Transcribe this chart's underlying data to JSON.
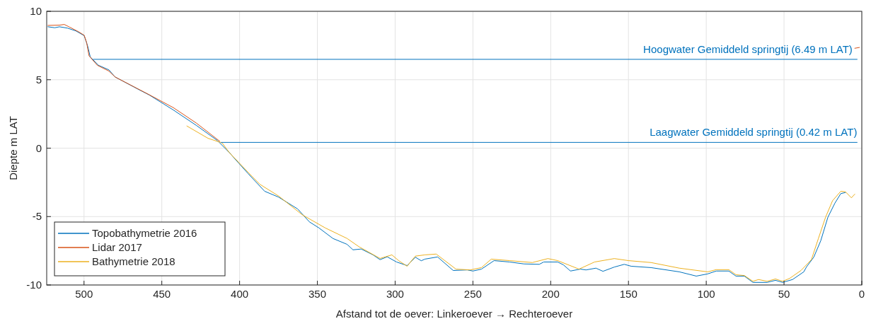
{
  "chart_data": {
    "type": "line",
    "xlabel": "Afstand tot de oever: Linkeroever → Rechteroever",
    "ylabel": "Diepte m LAT",
    "xlim": [
      524,
      0
    ],
    "xticks": [
      0,
      50,
      100,
      150,
      200,
      250,
      300,
      350,
      400,
      450,
      500
    ],
    "ylim": [
      -10,
      10
    ],
    "yticks": [
      -10,
      -5,
      0,
      5,
      10
    ],
    "grid": true,
    "legend": "bottom left",
    "line_style": "solid",
    "marker": "none",
    "series": [
      {
        "name": "Topobathymetrie 2016",
        "color": "#0072bd",
        "x": [
          523.2,
          518.8,
          515.8,
          510.5,
          505.1,
          499.9,
          497.6,
          496,
          490.8,
          484,
          480,
          465.8,
          458,
          442.6,
          427.9,
          414.2,
          406.7,
          400.6,
          394.5,
          383.9,
          374.9,
          362.7,
          355.1,
          349.1,
          340,
          330.9,
          327.1,
          321.8,
          314.2,
          309.7,
          305.1,
          299.1,
          292.3,
          287,
          283.2,
          280.9,
          272.7,
          262.7,
          253.6,
          250,
          244.5,
          236.4,
          226.4,
          217.3,
          207.3,
          204.5,
          195.5,
          191.8,
          187.3,
          180.9,
          177.3,
          170.9,
          166.4,
          159.1,
          152.7,
          148.2,
          135.5,
          117.3,
          106.4,
          99.1,
          93.6,
          85.5,
          80.9,
          75.5,
          70,
          60.9,
          55.5,
          50.9,
          44.5,
          37.3,
          35.5,
          30.9,
          26.4,
          21.8,
          17.3,
          13.5,
          10.5
        ],
        "values": [
          8.87,
          8.8,
          8.87,
          8.77,
          8.56,
          8.22,
          7.44,
          6.67,
          6.06,
          5.72,
          5.2,
          4.34,
          3.88,
          2.79,
          1.67,
          0.55,
          -0.31,
          -1.09,
          -1.86,
          -3.15,
          -3.58,
          -4.44,
          -5.39,
          -5.82,
          -6.6,
          -7.03,
          -7.43,
          -7.37,
          -7.8,
          -8.15,
          -7.94,
          -8.32,
          -8.58,
          -7.97,
          -8.23,
          -8.11,
          -7.95,
          -8.94,
          -8.9,
          -8.98,
          -8.84,
          -8.22,
          -8.32,
          -8.46,
          -8.49,
          -8.32,
          -8.32,
          -8.53,
          -8.98,
          -8.84,
          -8.9,
          -8.77,
          -9.0,
          -8.69,
          -8.49,
          -8.63,
          -8.73,
          -9.04,
          -9.35,
          -9.19,
          -8.98,
          -8.98,
          -9.35,
          -9.35,
          -9.81,
          -9.81,
          -9.66,
          -9.81,
          -9.6,
          -9.04,
          -8.67,
          -7.97,
          -6.77,
          -5.05,
          -4.02,
          -3.32,
          -3.24
        ]
      },
      {
        "name": "Lidar 2017",
        "color": "#d95319",
        "x": [
          523.2,
          515.8,
          512.7,
          509.7,
          503.6,
          499.9,
          498.3,
          496.8,
          491.5,
          484,
          480,
          458,
          442.6,
          427.9,
          412.7,
          6,
          4.5,
          1.5
        ],
        "values": [
          8.97,
          8.99,
          9.04,
          8.87,
          8.51,
          8.25,
          7.7,
          6.75,
          6.06,
          5.63,
          5.2,
          3.9,
          2.96,
          1.84,
          0.5,
          null,
          7.3,
          7.36
        ]
      },
      {
        "name": "Bathymetrie 2018",
        "color": "#edb120",
        "x": [
          433.9,
          420.3,
          411.2,
          406.7,
          394.5,
          387,
          374.9,
          359.7,
          345.1,
          330.9,
          323.3,
          309.7,
          302.1,
          297.6,
          292.3,
          287,
          280.9,
          273.6,
          260.9,
          251.8,
          244.5,
          238.2,
          226.4,
          211.8,
          201.8,
          195.5,
          181.8,
          171.8,
          159.1,
          150,
          135.5,
          117.3,
          99.1,
          93.6,
          85.5,
          80.9,
          75.5,
          70,
          66.4,
          60.9,
          55.5,
          50.9,
          46.4,
          39.1,
          32.4,
          27.9,
          23.3,
          18.8,
          13.5,
          10.5,
          6.7,
          4.5
        ],
        "values": [
          1.62,
          0.72,
          0.38,
          -0.31,
          -1.77,
          -2.64,
          -3.5,
          -4.87,
          -5.82,
          -6.6,
          -7.2,
          -8.06,
          -7.8,
          -8.23,
          -8.63,
          -7.89,
          -7.8,
          -7.74,
          -8.84,
          -8.9,
          -8.73,
          -8.11,
          -8.22,
          -8.36,
          -8.07,
          -8.22,
          -8.84,
          -8.32,
          -8.07,
          -8.22,
          -8.36,
          -8.77,
          -9.04,
          -8.88,
          -8.88,
          -9.25,
          -9.31,
          -9.73,
          -9.6,
          -9.73,
          -9.56,
          -9.73,
          -9.52,
          -8.94,
          -8.15,
          -6.6,
          -5.05,
          -3.84,
          -3.15,
          -3.19,
          -3.63,
          -3.36
        ]
      },
      {
        "color": "#0072bd",
        "x": [
          494,
          3
        ],
        "values": [
          6.49,
          6.49
        ]
      },
      {
        "color": "#0072bd",
        "x": [
          411.8,
          3
        ],
        "values": [
          0.42,
          0.42
        ]
      }
    ],
    "annotations": [
      {
        "text": "Hoogwater Gemiddeld springtij (6.49 m LAT)",
        "x": 6,
        "y": 6.49
      },
      {
        "text": "Laagwater Gemiddeld springtij (0.42 m LAT)",
        "x": 3,
        "y": 0.42
      }
    ]
  }
}
